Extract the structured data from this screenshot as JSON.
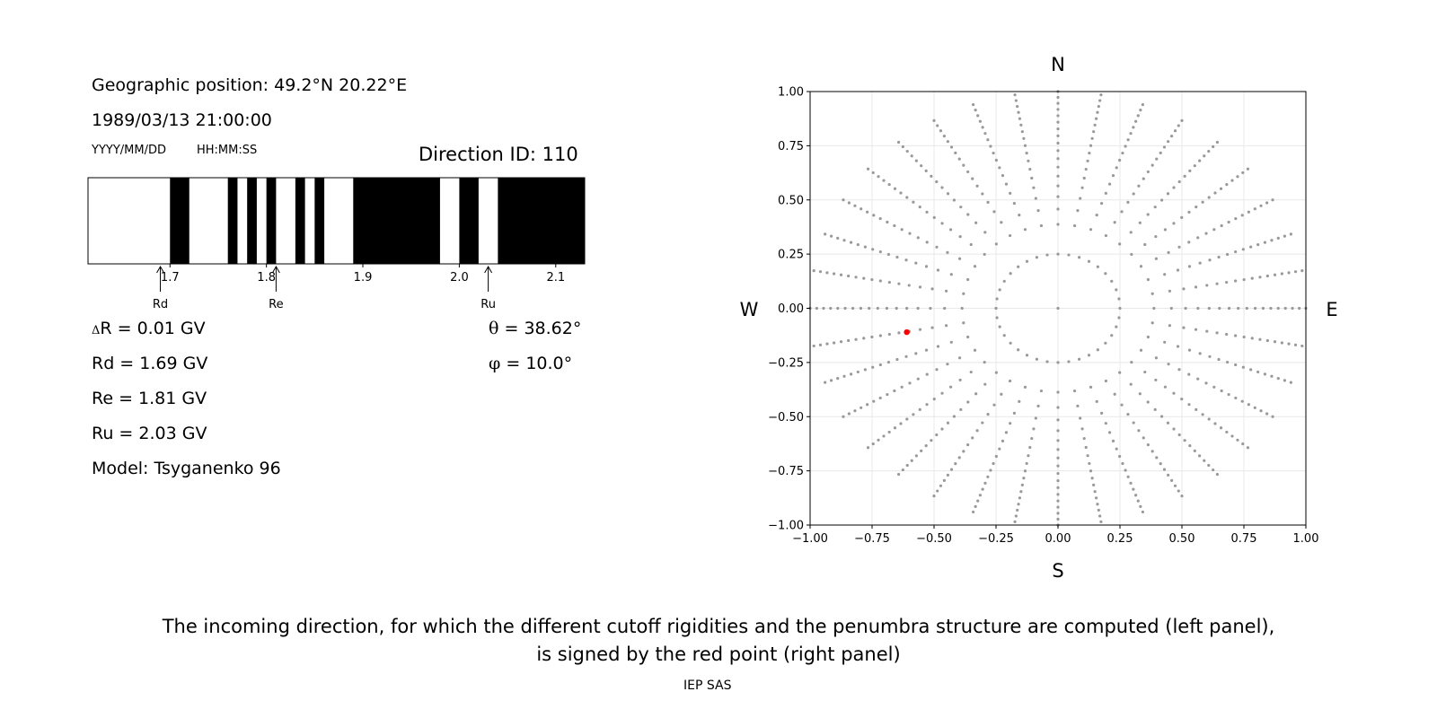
{
  "info": {
    "geo_position": "Geographic position: 49.2°N 20.22°E",
    "datetime": "1989/03/13 21:00:00",
    "date_format": "YYYY/MM/DD",
    "time_format": "HH:MM:SS",
    "direction_id": "Direction ID: 110"
  },
  "penumbra": {
    "x_min": 1.615,
    "x_max": 2.13,
    "ticks": [
      1.7,
      1.8,
      1.9,
      2.0,
      2.1
    ],
    "tick_labels": [
      "1.7",
      "1.8",
      "1.9",
      "2.0",
      "2.1"
    ],
    "black_bands": [
      [
        1.7,
        1.72
      ],
      [
        1.76,
        1.77
      ],
      [
        1.78,
        1.79
      ],
      [
        1.8,
        1.81
      ],
      [
        1.83,
        1.84
      ],
      [
        1.85,
        1.86
      ],
      [
        1.89,
        1.98
      ],
      [
        2.0,
        2.02
      ],
      [
        2.04,
        2.13
      ]
    ],
    "markers": [
      {
        "label": "Rd",
        "value": 1.69
      },
      {
        "label": "Re",
        "value": 1.81
      },
      {
        "label": "Ru",
        "value": 2.03
      }
    ]
  },
  "values": {
    "delta_symbol": "Δ",
    "delta_r": "R = 0.01 GV",
    "rd": "Rd = 1.69 GV",
    "re": "Re = 1.81 GV",
    "ru": "Ru = 2.03 GV",
    "model": "Model: Tsyganenko 96",
    "theta_symbol": "θ",
    "theta": "= 38.62°",
    "phi_symbol": "φ",
    "phi": "= 10.0°"
  },
  "chart_data": {
    "type": "scatter",
    "xlim": [
      -1.0,
      1.0
    ],
    "ylim": [
      -1.0,
      1.0
    ],
    "x_ticks": [
      "−1.00",
      "−0.75",
      "−0.50",
      "−0.25",
      "0.00",
      "0.25",
      "0.50",
      "0.75",
      "1.00"
    ],
    "y_ticks": [
      "1.00",
      "0.75",
      "0.50",
      "0.25",
      "0.00",
      "−0.25",
      "−0.50",
      "−0.75",
      "−1.00"
    ],
    "directions": {
      "N": "N",
      "S": "S",
      "W": "W",
      "E": "E"
    },
    "grid": true,
    "grid_points": {
      "center": [
        0.0,
        0.0
      ],
      "radial_lines": 36,
      "angle_step_deg": 10,
      "radius_range": [
        0.25,
        1.0
      ],
      "color": "#999999"
    },
    "highlight_point": {
      "x": -0.61,
      "y": -0.11,
      "color": "#ff0000"
    }
  },
  "caption": {
    "line1": "The incoming direction, for which the different cutoff rigidities and the penumbra structure are computed (left panel),",
    "line2": "is signed by the red point (right panel)",
    "footer": "IEP SAS"
  }
}
